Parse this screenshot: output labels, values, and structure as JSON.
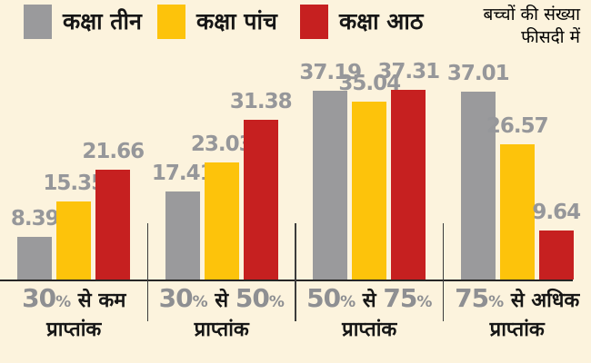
{
  "style": {
    "background": "#fcf3dd",
    "value_label_color": "#96979a",
    "category_number_color": "#8e8f92",
    "text_color": "#161616",
    "axis_color": "#262626",
    "divider_color": "#3c3c3c"
  },
  "note": {
    "line1": "बच्चों की संख्या",
    "line2": "फीसदी में"
  },
  "legend": {
    "items": [
      {
        "label": "कक्षा तीन",
        "color": "#9a9a9c"
      },
      {
        "label": "कक्षा पांच",
        "color": "#fdc30b"
      },
      {
        "label": "कक्षा आठ",
        "color": "#c62020"
      }
    ]
  },
  "chart_data": {
    "type": "bar",
    "title": "",
    "unit_note": "बच्चों की संख्या फीसदी में",
    "categories": [
      "30% से कम प्राप्तांक",
      "30% से 50% प्राप्तांक",
      "50% से 75% प्राप्तांक",
      "75% से अधिक प्राप्तांक"
    ],
    "category_lines": [
      {
        "parts": [
          {
            "text": "30%",
            "kind": "num"
          },
          {
            "text": " से कम",
            "kind": "txt"
          }
        ],
        "sub": "प्राप्तांक"
      },
      {
        "parts": [
          {
            "text": "30%",
            "kind": "num"
          },
          {
            "text": " से ",
            "kind": "txt"
          },
          {
            "text": "50%",
            "kind": "num"
          }
        ],
        "sub": "प्राप्तांक"
      },
      {
        "parts": [
          {
            "text": "50%",
            "kind": "num"
          },
          {
            "text": " से ",
            "kind": "txt"
          },
          {
            "text": "75%",
            "kind": "num"
          }
        ],
        "sub": "प्राप्तांक"
      },
      {
        "parts": [
          {
            "text": "75%",
            "kind": "num"
          },
          {
            "text": " से अधिक",
            "kind": "txt"
          }
        ],
        "sub": "प्राप्तांक"
      }
    ],
    "series": [
      {
        "name": "कक्षा तीन",
        "color": "#9a9a9c",
        "values": [
          8.39,
          17.41,
          37.19,
          37.01
        ]
      },
      {
        "name": "कक्षा पांच",
        "color": "#fdc30b",
        "values": [
          15.35,
          23.03,
          35.04,
          26.57
        ]
      },
      {
        "name": "कक्षा आठ",
        "color": "#c62020",
        "values": [
          21.66,
          31.38,
          37.31,
          9.64
        ]
      }
    ],
    "ylim": [
      0,
      40
    ],
    "grid": false,
    "legend_position": "top-left",
    "value_labels": true
  }
}
